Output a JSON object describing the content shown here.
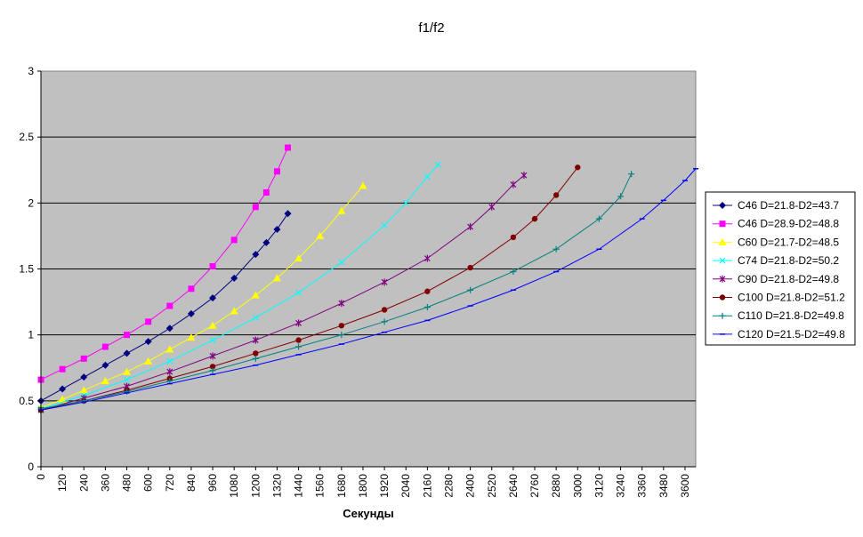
{
  "chart_data": {
    "type": "line",
    "title": "f1/f2",
    "xlabel": "Секунды",
    "ylabel": "",
    "xlim": [
      0,
      3660
    ],
    "ylim": [
      0,
      3
    ],
    "yticks": [
      "0",
      "0.5",
      "1",
      "1.5",
      "2",
      "2.5",
      "3"
    ],
    "xticks": [
      "0",
      "120",
      "240",
      "360",
      "480",
      "600",
      "720",
      "840",
      "960",
      "1080",
      "1200",
      "1320",
      "1440",
      "1560",
      "1680",
      "1800",
      "1920",
      "2040",
      "2160",
      "2280",
      "2400",
      "2520",
      "2640",
      "2760",
      "2880",
      "3000",
      "3120",
      "3240",
      "3360",
      "3480",
      "3600"
    ],
    "grid": "horizontal",
    "legend_position": "right",
    "series": [
      {
        "name": "C46 D=21.8-D2=43.7",
        "color": "#000080",
        "marker": "diamond",
        "x": [
          0,
          120,
          240,
          360,
          480,
          600,
          720,
          840,
          960,
          1080,
          1200,
          1260,
          1320,
          1380
        ],
        "y": [
          0.5,
          0.59,
          0.68,
          0.77,
          0.86,
          0.95,
          1.05,
          1.16,
          1.28,
          1.43,
          1.61,
          1.7,
          1.8,
          1.92
        ]
      },
      {
        "name": "C46 D=28.9-D2=48.8",
        "color": "#ff00ff",
        "marker": "square",
        "x": [
          0,
          120,
          240,
          360,
          480,
          600,
          720,
          840,
          960,
          1080,
          1200,
          1260,
          1320,
          1380
        ],
        "y": [
          0.66,
          0.74,
          0.82,
          0.91,
          1.0,
          1.1,
          1.22,
          1.35,
          1.52,
          1.72,
          1.97,
          2.08,
          2.24,
          2.42
        ]
      },
      {
        "name": "C60 D=21.7-D2=48.5",
        "color": "#ffff00",
        "marker": "triangle",
        "x": [
          0,
          120,
          240,
          360,
          480,
          600,
          720,
          840,
          960,
          1080,
          1200,
          1320,
          1440,
          1560,
          1680,
          1800
        ],
        "y": [
          0.45,
          0.51,
          0.58,
          0.65,
          0.72,
          0.8,
          0.89,
          0.98,
          1.07,
          1.18,
          1.3,
          1.43,
          1.58,
          1.75,
          1.94,
          2.13
        ]
      },
      {
        "name": "C74 D=21.8-D2=50.2",
        "color": "#00ffff",
        "marker": "x",
        "x": [
          0,
          240,
          480,
          720,
          960,
          1200,
          1440,
          1680,
          1920,
          2040,
          2160,
          2220
        ],
        "y": [
          0.44,
          0.54,
          0.66,
          0.8,
          0.96,
          1.13,
          1.32,
          1.55,
          1.83,
          2.0,
          2.2,
          2.29
        ]
      },
      {
        "name": "C90 D=21.8-D2=49.8",
        "color": "#800080",
        "marker": "star",
        "x": [
          0,
          240,
          480,
          720,
          960,
          1200,
          1440,
          1680,
          1920,
          2160,
          2400,
          2520,
          2640,
          2700
        ],
        "y": [
          0.43,
          0.52,
          0.61,
          0.72,
          0.84,
          0.96,
          1.09,
          1.24,
          1.4,
          1.58,
          1.82,
          1.97,
          2.14,
          2.21
        ]
      },
      {
        "name": "C100 D=21.8-D2=51.2",
        "color": "#800000",
        "marker": "circle",
        "x": [
          0,
          240,
          480,
          720,
          960,
          1200,
          1440,
          1680,
          1920,
          2160,
          2400,
          2640,
          2760,
          2880,
          3000
        ],
        "y": [
          0.43,
          0.5,
          0.58,
          0.67,
          0.76,
          0.86,
          0.96,
          1.07,
          1.19,
          1.33,
          1.51,
          1.74,
          1.88,
          2.06,
          2.27
        ]
      },
      {
        "name": "C110 D=21.8-D2=49.8",
        "color": "#008080",
        "marker": "plus",
        "x": [
          0,
          240,
          480,
          720,
          960,
          1200,
          1440,
          1680,
          1920,
          2160,
          2400,
          2640,
          2880,
          3120,
          3240,
          3300
        ],
        "y": [
          0.44,
          0.5,
          0.57,
          0.65,
          0.73,
          0.82,
          0.91,
          1.0,
          1.1,
          1.21,
          1.34,
          1.48,
          1.65,
          1.88,
          2.05,
          2.22
        ]
      },
      {
        "name": "C120 D=21.5-D2=49.8",
        "color": "#0000ff",
        "marker": "dash",
        "x": [
          0,
          240,
          480,
          720,
          960,
          1200,
          1440,
          1680,
          1920,
          2160,
          2400,
          2640,
          2880,
          3120,
          3360,
          3480,
          3600,
          3660
        ],
        "y": [
          0.43,
          0.49,
          0.56,
          0.63,
          0.7,
          0.77,
          0.85,
          0.93,
          1.02,
          1.11,
          1.22,
          1.34,
          1.48,
          1.65,
          1.88,
          2.02,
          2.17,
          2.26
        ]
      }
    ]
  }
}
